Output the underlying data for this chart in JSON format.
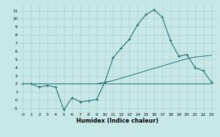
{
  "xlabel": "Humidex (Indice chaleur)",
  "x_values": [
    0,
    1,
    2,
    3,
    4,
    5,
    6,
    7,
    8,
    9,
    10,
    11,
    12,
    13,
    14,
    15,
    16,
    17,
    18,
    19,
    20,
    21,
    22,
    23
  ],
  "curve1": [
    2,
    2,
    1.6,
    1.8,
    1.6,
    -1.2,
    0.3,
    -0.2,
    -0.1,
    0.1,
    2.2,
    5.2,
    6.4,
    7.5,
    9.3,
    10.5,
    11.1,
    10.2,
    7.3,
    5.4,
    5.6,
    4.0,
    3.6,
    2.2
  ],
  "curve2": [
    2.0,
    2.0,
    2.0,
    2.0,
    2.0,
    2.0,
    2.0,
    2.0,
    2.0,
    2.0,
    2.2,
    2.4,
    2.7,
    3.0,
    3.3,
    3.6,
    3.9,
    4.2,
    4.5,
    4.8,
    5.1,
    5.3,
    5.4,
    5.5
  ],
  "curve3": [
    2.0,
    2.0,
    2.0,
    2.0,
    2.0,
    2.0,
    2.0,
    2.0,
    2.0,
    2.0,
    2.0,
    2.0,
    2.0,
    2.0,
    2.0,
    2.0,
    2.0,
    2.0,
    2.0,
    2.0,
    2.0,
    2.0,
    2.0,
    2.0
  ],
  "ylim": [
    -1.5,
    11.8
  ],
  "xlim": [
    -0.5,
    23.5
  ],
  "yticks": [
    -1,
    0,
    1,
    2,
    3,
    4,
    5,
    6,
    7,
    8,
    9,
    10,
    11
  ],
  "xticks": [
    0,
    1,
    2,
    3,
    4,
    5,
    6,
    7,
    8,
    9,
    10,
    11,
    12,
    13,
    14,
    15,
    16,
    17,
    18,
    19,
    20,
    21,
    22,
    23
  ],
  "bg_color": "#c8e8e8",
  "grid_color": "#aacece",
  "line_color": "#1a6b6b",
  "linewidth": 0.8,
  "linewidth2": 0.7,
  "marker": "+",
  "marker_size": 3,
  "tick_fontsize": 4.5,
  "label_fontsize": 6.0,
  "label_fontweight": "bold"
}
